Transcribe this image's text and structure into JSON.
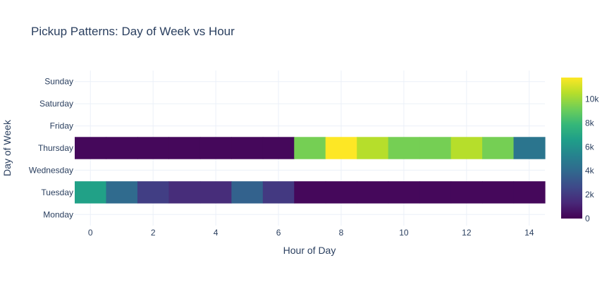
{
  "chart_data": {
    "type": "heatmap",
    "title": "Pickup Patterns: Day of Week vs Hour",
    "xlabel": "Hour of Day",
    "ylabel": "Day of Week",
    "x": [
      0,
      1,
      2,
      3,
      4,
      5,
      6,
      7,
      8,
      9,
      10,
      11,
      12,
      13,
      14
    ],
    "y": [
      "Monday",
      "Tuesday",
      "Wednesday",
      "Thursday",
      "Friday",
      "Saturday",
      "Sunday"
    ],
    "x_ticks": [
      0,
      2,
      4,
      6,
      8,
      10,
      12,
      14
    ],
    "x_range": [
      -0.5,
      14.5
    ],
    "z": [
      [
        null,
        null,
        null,
        null,
        null,
        null,
        null,
        null,
        null,
        null,
        null,
        null,
        null,
        null,
        null
      ],
      [
        6700,
        4100,
        2200,
        1500,
        1500,
        3700,
        2000,
        250,
        250,
        250,
        250,
        250,
        250,
        250,
        250
      ],
      [
        null,
        null,
        null,
        null,
        null,
        null,
        null,
        null,
        null,
        null,
        null,
        null,
        null,
        null,
        null
      ],
      [
        250,
        250,
        250,
        250,
        250,
        250,
        250,
        9300,
        11800,
        10500,
        9300,
        9300,
        10500,
        9300,
        4600
      ],
      [
        null,
        null,
        null,
        null,
        null,
        null,
        null,
        null,
        null,
        null,
        null,
        null,
        null,
        null,
        null
      ],
      [
        null,
        null,
        null,
        null,
        null,
        null,
        null,
        null,
        null,
        null,
        null,
        null,
        null,
        null,
        null
      ],
      [
        null,
        null,
        null,
        null,
        null,
        null,
        null,
        null,
        null,
        null,
        null,
        null,
        null,
        null,
        null
      ]
    ],
    "colorscale": "Viridis",
    "colors": [
      "#440154",
      "#482878",
      "#3e4989",
      "#31688e",
      "#26828e",
      "#1f9e89",
      "#35b779",
      "#6ece58",
      "#b5de2b",
      "#fde725"
    ],
    "zmin": 0,
    "zmax": 11800,
    "colorbar_ticks": [
      0,
      2000,
      4000,
      6000,
      8000,
      10000
    ],
    "colorbar_tick_labels": [
      "0",
      "2k",
      "4k",
      "6k",
      "8k",
      "10k"
    ],
    "grid": true
  }
}
